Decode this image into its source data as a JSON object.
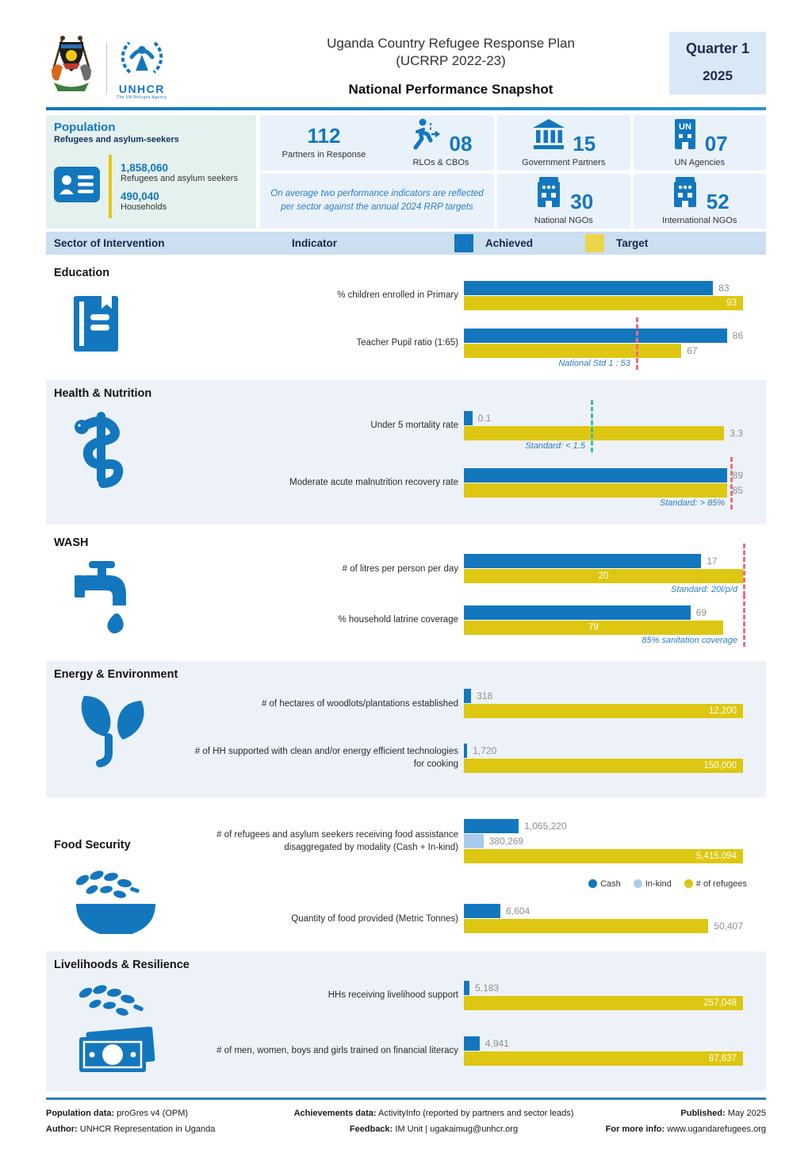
{
  "header": {
    "title_line1": "Uganda Country Refugee Response Plan",
    "title_line2": "(UCRRP 2022-23)",
    "subtitle": "National Performance Snapshot",
    "quarter": "Quarter 1",
    "year": "2025",
    "unhcr_wordmark": "UNHCR",
    "unhcr_tagline": "The UN Refugee Agency"
  },
  "population": {
    "heading": "Population",
    "subheading": "Refugees and asylum-seekers",
    "refugees_value": "1,858,060",
    "refugees_label": "Refugees and asylum seekers",
    "households_value": "490,040",
    "households_label": "Households",
    "note": "On average two performance indicators are reflected per sector against the annual 2024 RRP targets",
    "stats": [
      {
        "value": "112",
        "label": "Partners in Response",
        "icon": ""
      },
      {
        "value": "08",
        "label": "RLOs & CBOs",
        "icon": "runner-icon"
      },
      {
        "value": "15",
        "label": "Government Partners",
        "icon": "government-icon"
      },
      {
        "value": "07",
        "label": "UN Agencies",
        "icon": "un-building-icon"
      },
      {
        "value": "30",
        "label": "National NGOs",
        "icon": "ngo-building-icon"
      },
      {
        "value": "52",
        "label": "International NGOs",
        "icon": "ngo-building-icon"
      }
    ]
  },
  "table_header": {
    "col_sector": "Sector of Intervention",
    "col_indicator": "Indicator",
    "col_achieved": "Achieved",
    "col_target": "Target"
  },
  "colors": {
    "achieved": "#1377be",
    "target": "#ddc712",
    "inkind": "#a9cbee",
    "std_red": "#f0697e",
    "std_teal": "#3cbcab"
  },
  "chart_data": [
    {
      "type": "bar",
      "sector": "Education",
      "icon": "book-icon",
      "shaded": false,
      "css": "s-education",
      "rows": [
        {
          "label": "% children enrolled in Primary",
          "max": 93,
          "bars": [
            {
              "series": "Achieved",
              "value": 83,
              "display": "83",
              "color": "achieved",
              "label_pos": "outside"
            },
            {
              "series": "Target",
              "value": 93,
              "display": "93",
              "color": "target",
              "label_pos": "inside-right"
            }
          ]
        },
        {
          "label": "Teacher Pupil ratio (1:65)",
          "max": 86,
          "bars": [
            {
              "series": "Achieved",
              "value": 86,
              "display": "86",
              "color": "achieved",
              "label_pos": "outside"
            },
            {
              "series": "Target",
              "value": 67,
              "display": "67",
              "color": "target",
              "label_pos": "outside"
            }
          ],
          "standard": {
            "value": 53,
            "text": "National Std 1 : 53",
            "color": "red"
          }
        }
      ]
    },
    {
      "type": "bar",
      "sector": "Health & Nutrition",
      "icon": "health-icon",
      "shaded": true,
      "css": "s-health",
      "rows": [
        {
          "label": "Under 5 mortality rate",
          "max": 3.3,
          "bars": [
            {
              "series": "Achieved",
              "value": 0.1,
              "display": "0.1",
              "color": "achieved",
              "label_pos": "outside"
            },
            {
              "series": "Target",
              "value": 3.3,
              "display": "3.3",
              "color": "target",
              "label_pos": "outside"
            }
          ],
          "standard": {
            "value": 1.5,
            "text": "Standard: < 1.5",
            "color": "teal"
          }
        },
        {
          "label": "Moderate acute malnutrition recovery rate",
          "max": 89,
          "bars": [
            {
              "series": "Achieved",
              "value": 89,
              "display": "89",
              "color": "achieved",
              "label_pos": "outside"
            },
            {
              "series": "Target",
              "value": 85,
              "display": "85",
              "color": "target",
              "label_pos": "outside"
            }
          ],
          "standard": {
            "value": 85,
            "text": "Standard: > 85%",
            "color": "red"
          }
        }
      ]
    },
    {
      "type": "bar",
      "sector": "WASH",
      "icon": "tap-icon",
      "shaded": false,
      "css": "s-wash",
      "rows": [
        {
          "label": "# of litres per person per day",
          "max": 20,
          "bars": [
            {
              "series": "Achieved",
              "value": 17,
              "display": "17",
              "color": "achieved",
              "label_pos": "outside"
            },
            {
              "series": "Target",
              "value": 20,
              "display": "20",
              "color": "target",
              "label_pos": "inside-center"
            }
          ],
          "standard": {
            "value": 20,
            "text": "Standard: 20l/p/d",
            "color": "red"
          }
        },
        {
          "label": "% household latrine coverage",
          "max": 85,
          "bars": [
            {
              "series": "Achieved",
              "value": 69,
              "display": "69",
              "color": "achieved",
              "label_pos": "outside"
            },
            {
              "series": "Target",
              "value": 79,
              "display": "79",
              "color": "target",
              "label_pos": "inside-center"
            }
          ],
          "standard": {
            "value": 85,
            "text": "85% sanitation coverage",
            "color": "red"
          }
        }
      ]
    },
    {
      "type": "bar",
      "sector": "Energy & Environment",
      "icon": "plant-icon",
      "shaded": true,
      "css": "s-energy",
      "rows": [
        {
          "label": "# of hectares of woodlots/plantations established",
          "max": 12200,
          "bars": [
            {
              "series": "Achieved",
              "value": 318,
              "display": "318",
              "color": "achieved",
              "label_pos": "outside"
            },
            {
              "series": "Target",
              "value": 12200,
              "display": "12,200",
              "color": "target",
              "label_pos": "inside-right"
            }
          ]
        },
        {
          "label": "# of HH supported with clean and/or energy efficient technologies for cooking",
          "max": 150000,
          "bars": [
            {
              "series": "Achieved",
              "value": 1720,
              "display": "1,720",
              "color": "achieved",
              "label_pos": "outside"
            },
            {
              "series": "Target",
              "value": 150000,
              "display": "150,000",
              "color": "target",
              "label_pos": "inside-right"
            }
          ]
        }
      ]
    },
    {
      "type": "bar",
      "sector": "Food Security",
      "icon": "bowl-icon",
      "shaded": false,
      "css": "s-food",
      "rows": [
        {
          "label": "# of refugees and asylum seekers receiving food assistance disaggregated by modality (Cash + In-kind)",
          "max": 5415094,
          "bars": [
            {
              "series": "Cash",
              "value": 1065220,
              "display": "1,065,220",
              "color": "achieved",
              "label_pos": "outside"
            },
            {
              "series": "In-kind",
              "value": 380269,
              "display": "380,269",
              "color": "inkind",
              "label_pos": "outside"
            },
            {
              "series": "# of refugees",
              "value": 5415094,
              "display": "5,415,094",
              "color": "target",
              "label_pos": "inside-right"
            }
          ],
          "legend": [
            {
              "label": "Cash",
              "color": "achieved"
            },
            {
              "label": "In-kind",
              "color": "inkind"
            },
            {
              "label": "# of refugees",
              "color": "target"
            }
          ]
        },
        {
          "label": "Quantity of food provided (Metric Tonnes)",
          "max": 50407,
          "bars": [
            {
              "series": "Achieved",
              "value": 6604,
              "display": "6,604",
              "color": "achieved",
              "label_pos": "outside"
            },
            {
              "series": "Target",
              "value": 50407,
              "display": "50,407",
              "color": "target",
              "label_pos": "outside"
            }
          ]
        }
      ]
    },
    {
      "type": "bar",
      "sector": "Livelihoods & Resilience",
      "icon": "money-icon",
      "shaded": true,
      "css": "s-live",
      "rows": [
        {
          "label": "HHs receiving livelihood support",
          "max": 257048,
          "bars": [
            {
              "series": "Achieved",
              "value": 5183,
              "display": "5,183",
              "color": "achieved",
              "label_pos": "outside"
            },
            {
              "series": "Target",
              "value": 257048,
              "display": "257,048",
              "color": "target",
              "label_pos": "inside-right"
            }
          ]
        },
        {
          "label": "# of men, women, boys and girls trained on financial literacy",
          "max": 87637,
          "bars": [
            {
              "series": "Achieved",
              "value": 4941,
              "display": "4,941",
              "color": "achieved",
              "label_pos": "outside"
            },
            {
              "series": "Target",
              "value": 87637,
              "display": "87,637",
              "color": "target",
              "label_pos": "inside-right"
            }
          ]
        }
      ]
    }
  ],
  "footer": {
    "items": [
      {
        "label": "Population data:",
        "value": "proGres v4 (OPM)"
      },
      {
        "label": "Author:",
        "value": "UNHCR Representation in Uganda"
      },
      {
        "label": "Achievements data:",
        "value": "ActivityInfo (reported by partners and sector leads)"
      },
      {
        "label": "Feedback:",
        "value": "IM Unit | ugakaimug@unhcr.org"
      },
      {
        "label": "Published:",
        "value": "May 2025"
      },
      {
        "label": "For more info:",
        "value": "www.ugandarefugees.org"
      }
    ]
  }
}
